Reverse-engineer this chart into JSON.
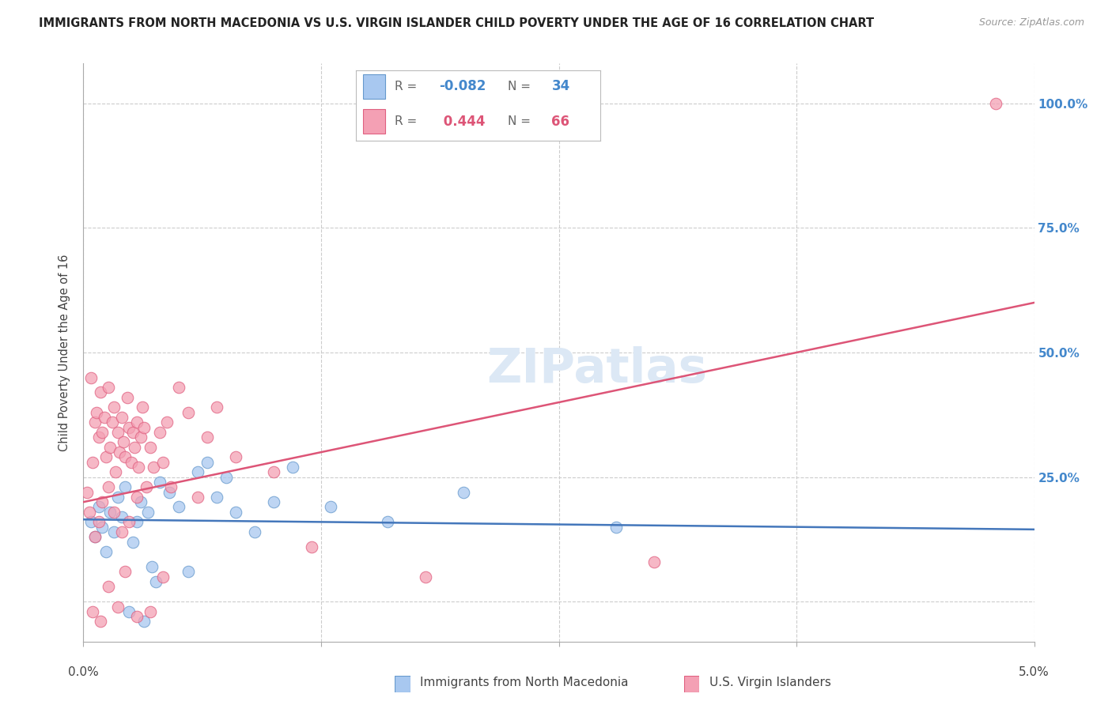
{
  "title": "IMMIGRANTS FROM NORTH MACEDONIA VS U.S. VIRGIN ISLANDER CHILD POVERTY UNDER THE AGE OF 16 CORRELATION CHART",
  "source": "Source: ZipAtlas.com",
  "ylabel": "Child Poverty Under the Age of 16",
  "xlim": [
    0.0,
    5.0
  ],
  "ylim": [
    -8.0,
    108.0
  ],
  "yticks": [
    0.0,
    25.0,
    50.0,
    75.0,
    100.0
  ],
  "color_blue": "#A8C8F0",
  "color_pink": "#F4A0B4",
  "color_blue_edge": "#6699CC",
  "color_pink_edge": "#E06080",
  "color_blue_line": "#4477BB",
  "color_pink_line": "#DD5577",
  "color_blue_label": "#4488CC",
  "color_pink_label": "#DD5577",
  "watermark": "ZIPatlas",
  "r1": "-0.082",
  "n1": "34",
  "r2": "0.444",
  "n2": "66",
  "blue_line_x": [
    0.0,
    5.0
  ],
  "blue_line_y": [
    16.5,
    14.5
  ],
  "pink_line_x": [
    0.0,
    5.0
  ],
  "pink_line_y": [
    20.0,
    60.0
  ],
  "blue_scatter_x": [
    0.04,
    0.06,
    0.08,
    0.1,
    0.12,
    0.14,
    0.16,
    0.18,
    0.2,
    0.22,
    0.24,
    0.26,
    0.28,
    0.3,
    0.32,
    0.34,
    0.36,
    0.38,
    0.4,
    0.45,
    0.5,
    0.55,
    0.6,
    0.65,
    0.7,
    0.75,
    0.8,
    0.9,
    1.0,
    1.1,
    1.3,
    1.6,
    2.0,
    2.8
  ],
  "blue_scatter_y": [
    16.0,
    13.0,
    19.0,
    15.0,
    10.0,
    18.0,
    14.0,
    21.0,
    17.0,
    23.0,
    -2.0,
    12.0,
    16.0,
    20.0,
    -4.0,
    18.0,
    7.0,
    4.0,
    24.0,
    22.0,
    19.0,
    6.0,
    26.0,
    28.0,
    21.0,
    25.0,
    18.0,
    14.0,
    20.0,
    27.0,
    19.0,
    16.0,
    22.0,
    15.0
  ],
  "pink_scatter_x": [
    0.02,
    0.04,
    0.05,
    0.06,
    0.07,
    0.08,
    0.09,
    0.1,
    0.11,
    0.12,
    0.13,
    0.14,
    0.15,
    0.16,
    0.17,
    0.18,
    0.19,
    0.2,
    0.21,
    0.22,
    0.23,
    0.24,
    0.25,
    0.26,
    0.27,
    0.28,
    0.29,
    0.3,
    0.31,
    0.32,
    0.33,
    0.35,
    0.37,
    0.4,
    0.42,
    0.44,
    0.46,
    0.5,
    0.55,
    0.6,
    0.65,
    0.7,
    0.8,
    1.0,
    1.2,
    1.8,
    3.0,
    4.8,
    0.03,
    0.06,
    0.08,
    0.1,
    0.13,
    0.16,
    0.2,
    0.24,
    0.28,
    0.05,
    0.09,
    0.13,
    0.18,
    0.22,
    0.28,
    0.35,
    0.42
  ],
  "pink_scatter_y": [
    22.0,
    45.0,
    28.0,
    36.0,
    38.0,
    33.0,
    42.0,
    34.0,
    37.0,
    29.0,
    43.0,
    31.0,
    36.0,
    39.0,
    26.0,
    34.0,
    30.0,
    37.0,
    32.0,
    29.0,
    41.0,
    35.0,
    28.0,
    34.0,
    31.0,
    36.0,
    27.0,
    33.0,
    39.0,
    35.0,
    23.0,
    31.0,
    27.0,
    34.0,
    28.0,
    36.0,
    23.0,
    43.0,
    38.0,
    21.0,
    33.0,
    39.0,
    29.0,
    26.0,
    11.0,
    5.0,
    8.0,
    100.0,
    18.0,
    13.0,
    16.0,
    20.0,
    23.0,
    18.0,
    14.0,
    16.0,
    21.0,
    -2.0,
    -4.0,
    3.0,
    -1.0,
    6.0,
    -3.0,
    -2.0,
    5.0
  ],
  "extra_pink_x": [
    4.8
  ],
  "extra_pink_y": [
    100.0
  ],
  "xtick_positions": [
    0.0,
    1.25,
    2.5,
    3.75,
    5.0
  ]
}
